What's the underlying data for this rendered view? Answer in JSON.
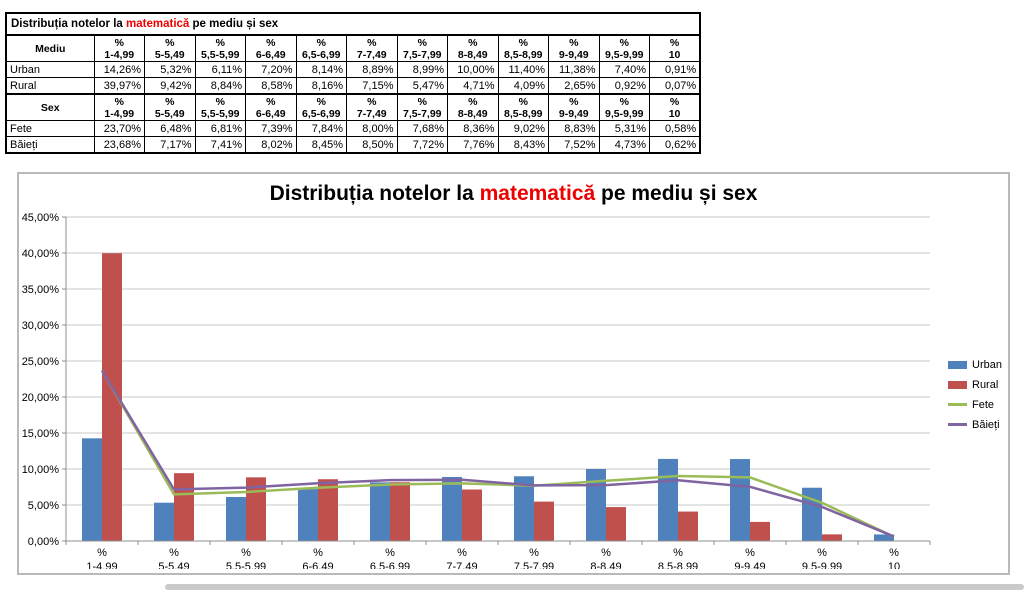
{
  "table": {
    "title_prefix": "Distribuția notelor la",
    "title_highlight": "matematică",
    "title_suffix": "pe mediu și sex",
    "percent_symbol": "%",
    "ranges": [
      "1-4,99",
      "5-5,49",
      "5,5-5,99",
      "6-6,49",
      "6,5-6,99",
      "7-7,49",
      "7,5-7,99",
      "8-8,49",
      "8,5-8,99",
      "9-9,49",
      "9,5-9,99",
      "10"
    ],
    "sections": [
      {
        "label": "Mediu",
        "rows": [
          {
            "label": "Urban",
            "values": [
              "14,26%",
              "5,32%",
              "6,11%",
              "7,20%",
              "8,14%",
              "8,89%",
              "8,99%",
              "10,00%",
              "11,40%",
              "11,38%",
              "7,40%",
              "0,91%"
            ]
          },
          {
            "label": "Rural",
            "values": [
              "39,97%",
              "9,42%",
              "8,84%",
              "8,58%",
              "8,16%",
              "7,15%",
              "5,47%",
              "4,71%",
              "4,09%",
              "2,65%",
              "0,92%",
              "0,07%"
            ]
          }
        ]
      },
      {
        "label": "Sex",
        "rows": [
          {
            "label": "Fete",
            "values": [
              "23,70%",
              "6,48%",
              "6,81%",
              "7,39%",
              "7,84%",
              "8,00%",
              "7,68%",
              "8,36%",
              "9,02%",
              "8,83%",
              "5,31%",
              "0,58%"
            ]
          },
          {
            "label": "Băieți",
            "values": [
              "23,68%",
              "7,17%",
              "7,41%",
              "8,02%",
              "8,45%",
              "8,50%",
              "7,72%",
              "7,76%",
              "8,43%",
              "7,52%",
              "4,73%",
              "0,62%"
            ]
          }
        ]
      }
    ]
  },
  "chart_header": {
    "title_prefix": "Distribuția notelor la",
    "title_highlight": "matematică",
    "title_suffix": "pe mediu și sex"
  },
  "chart_data": {
    "type": "bar+line",
    "title": "Distribuția notelor la matematică pe mediu și sex",
    "categories": [
      "1-4,99",
      "5-5,49",
      "5,5-5,99",
      "6-6,49",
      "6,5-6,99",
      "7-7,49",
      "7,5-7,99",
      "8-8,49",
      "8,5-8,99",
      "9-9,49",
      "9,5-9,99",
      "10"
    ],
    "category_prefix": "%",
    "series": [
      {
        "name": "Urban",
        "type": "bar",
        "color": "#4F81BD",
        "values": [
          14.26,
          5.32,
          6.11,
          7.2,
          8.14,
          8.89,
          8.99,
          10.0,
          11.4,
          11.38,
          7.4,
          0.91
        ]
      },
      {
        "name": "Rural",
        "type": "bar",
        "color": "#C0504D",
        "values": [
          39.97,
          9.42,
          8.84,
          8.58,
          8.16,
          7.15,
          5.47,
          4.71,
          4.09,
          2.65,
          0.92,
          0.07
        ]
      },
      {
        "name": "Fete",
        "type": "line",
        "color": "#9BBB59",
        "values": [
          23.7,
          6.48,
          6.81,
          7.39,
          7.84,
          8.0,
          7.68,
          8.36,
          9.02,
          8.83,
          5.31,
          0.58
        ]
      },
      {
        "name": "Băieți",
        "type": "line",
        "color": "#8064A2",
        "values": [
          23.68,
          7.17,
          7.41,
          8.02,
          8.45,
          8.5,
          7.72,
          7.76,
          8.43,
          7.52,
          4.73,
          0.62
        ]
      }
    ],
    "ylim": [
      0,
      45
    ],
    "ytick_step": 5,
    "ytick_format": "percent-comma-2dp",
    "grid": true,
    "legend_position": "right",
    "axis_color": "#8f8f8f",
    "grid_color": "#c9c9c9"
  }
}
